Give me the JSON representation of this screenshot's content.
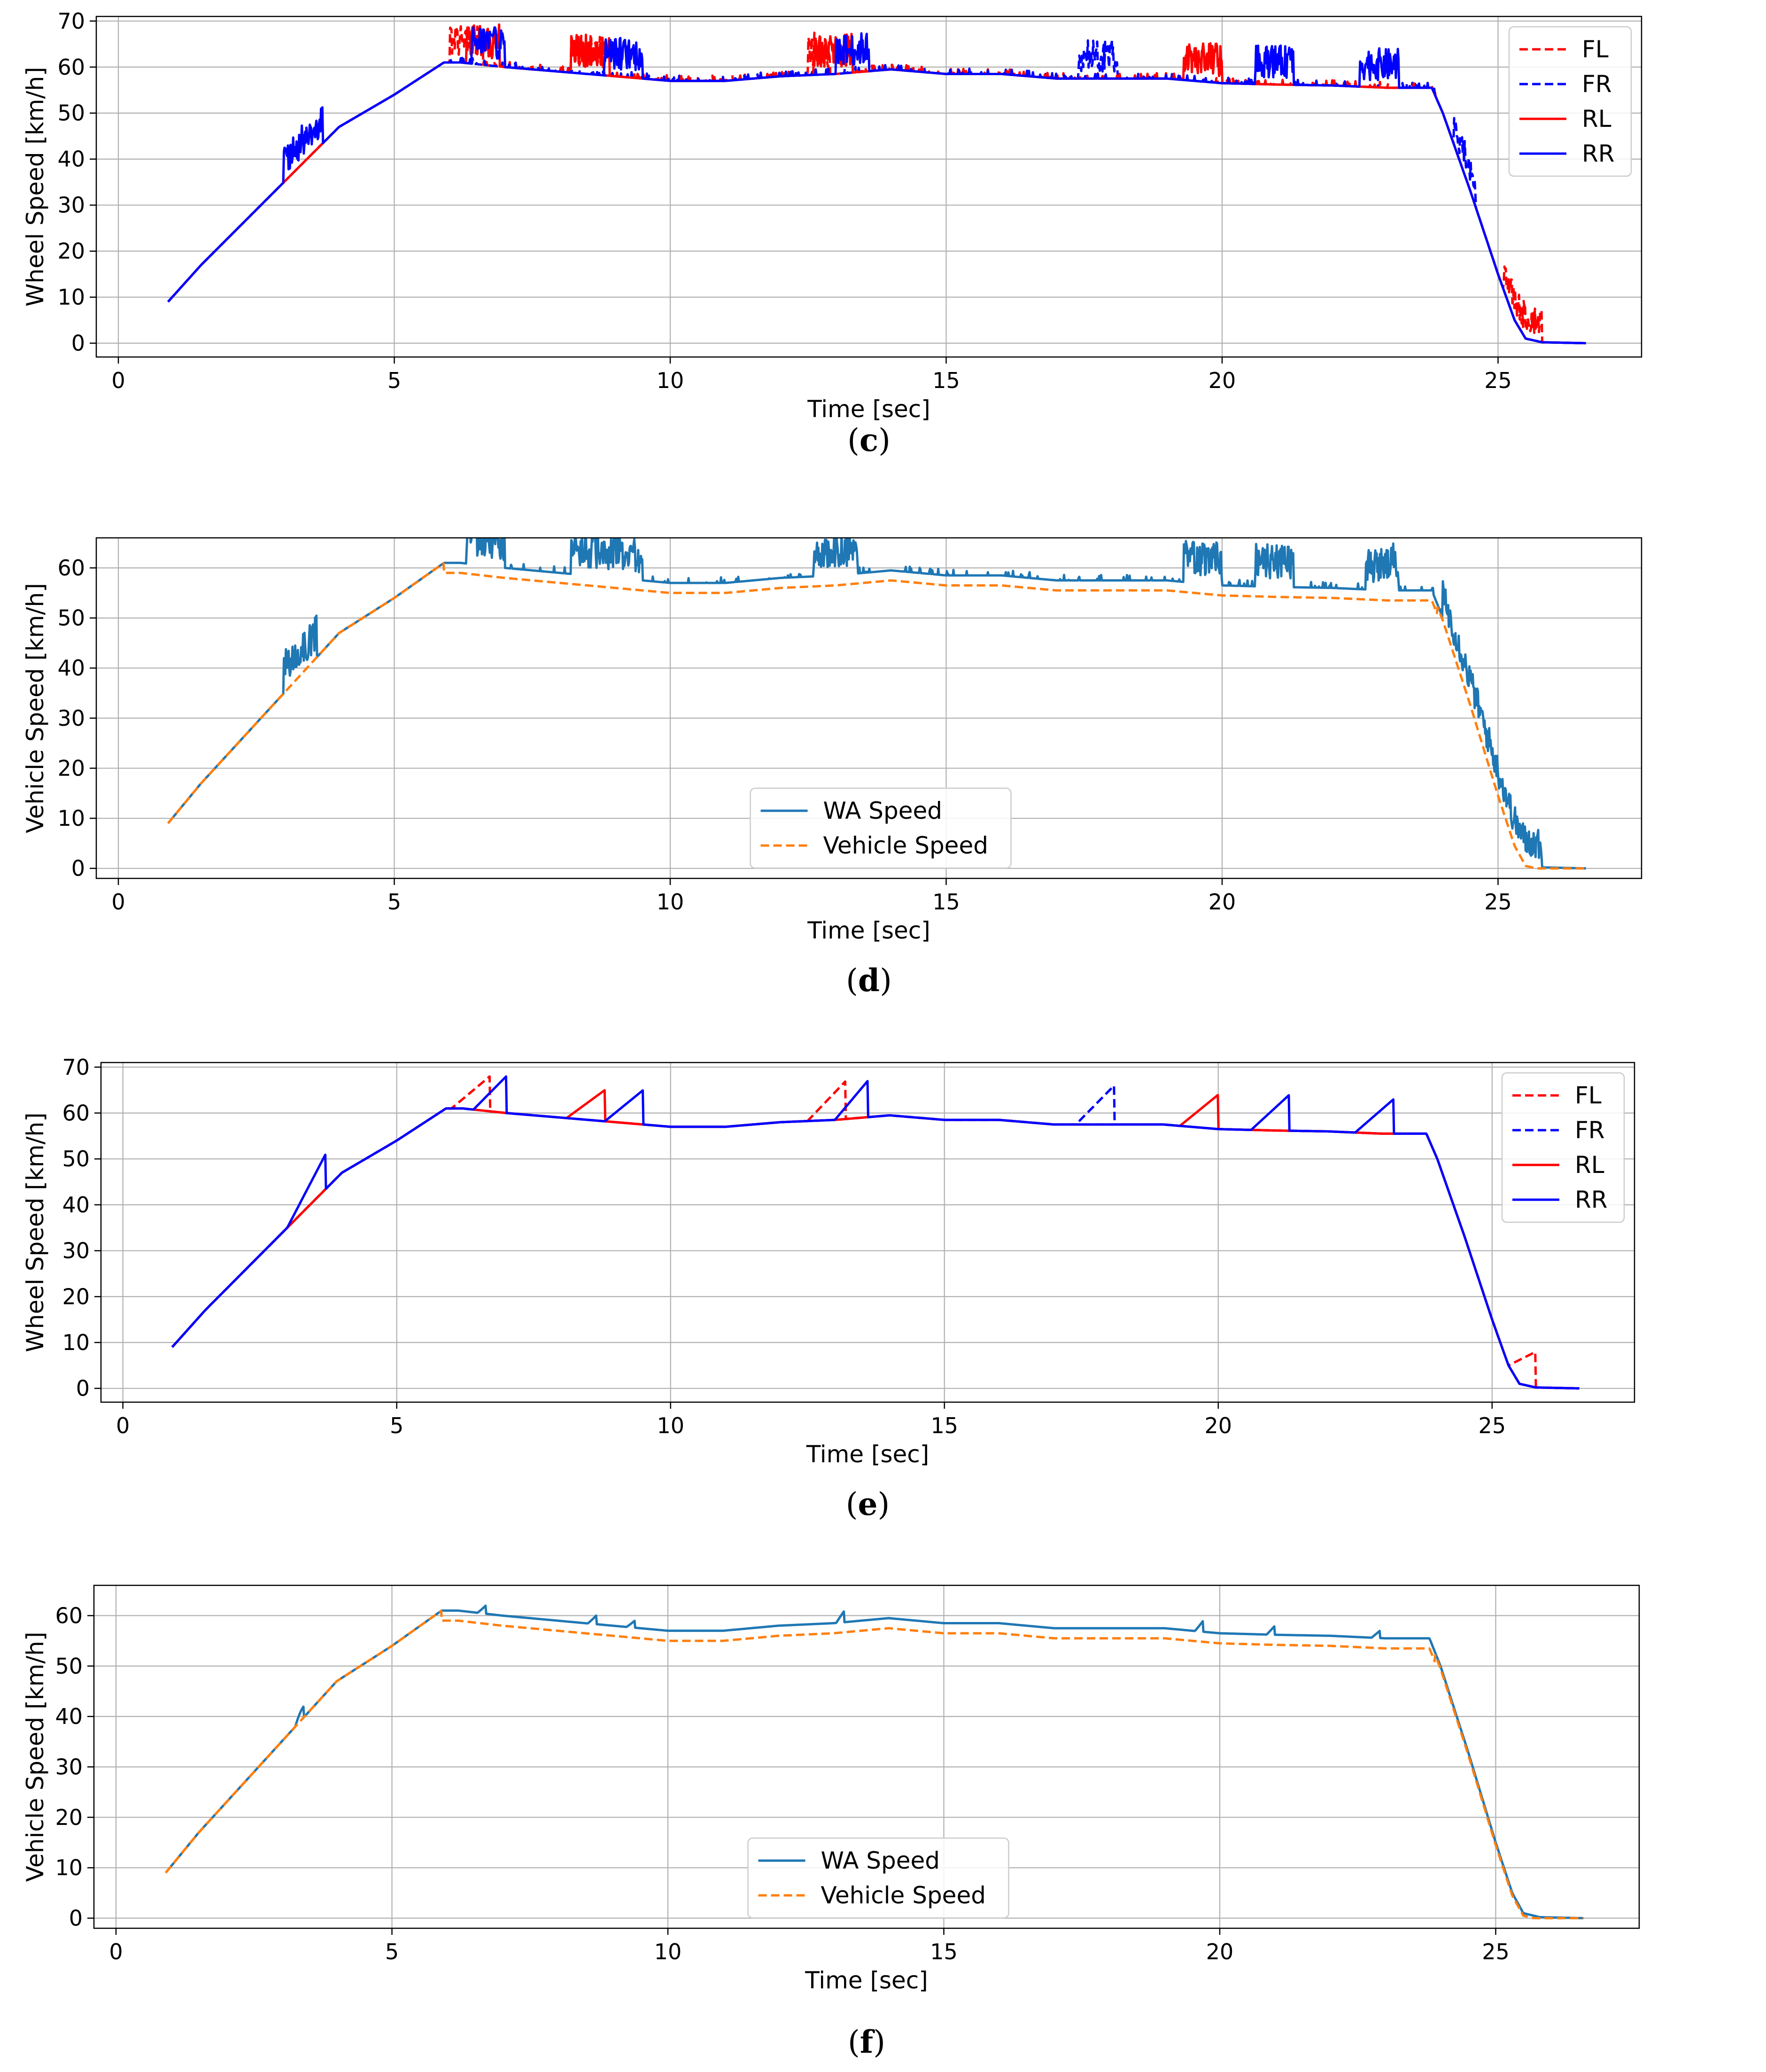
{
  "figure": {
    "captions": [
      "c",
      "d",
      "e",
      "f"
    ]
  },
  "chart_data": [
    {
      "panel": "c",
      "type": "line",
      "xlabel": "Time [sec]",
      "ylabel": "Wheel Speed [km/h]",
      "xlim": [
        -0.4,
        27.6
      ],
      "ylim": [
        -3,
        71
      ],
      "xticks": [
        0,
        5,
        10,
        15,
        20,
        25
      ],
      "yticks": [
        0,
        10,
        20,
        30,
        40,
        50,
        60,
        70
      ],
      "grid": true,
      "legend_position": "top-right",
      "series": [
        {
          "name": "FL",
          "color": "#ff0000",
          "dash": true,
          "noise": [
            [
              6.0,
              6.6
            ],
            [
              8.2,
              8.8
            ],
            [
              12.5,
              12.9
            ],
            [
              25.1,
              25.8
            ]
          ]
        },
        {
          "name": "FR",
          "color": "#0000ff",
          "dash": true,
          "noise": [
            [
              17.4,
              18.1
            ],
            [
              24.2,
              24.6
            ]
          ]
        },
        {
          "name": "RL",
          "color": "#ff0000",
          "dash": false,
          "noise": [
            [
              6.3,
              6.9
            ],
            [
              8.2,
              8.9
            ],
            [
              12.6,
              13.3
            ],
            [
              19.3,
              20.0
            ]
          ]
        },
        {
          "name": "RR",
          "color": "#0000ff",
          "dash": false,
          "noise": [
            [
              3.0,
              3.7
            ],
            [
              6.4,
              7.0
            ],
            [
              8.8,
              9.5
            ],
            [
              13.0,
              13.6
            ],
            [
              20.6,
              21.3
            ],
            [
              22.5,
              23.2
            ]
          ]
        }
      ]
    },
    {
      "panel": "d",
      "type": "line",
      "xlabel": "Time [sec]",
      "ylabel": "Vehicle Speed [km/h]",
      "xlim": [
        -0.4,
        27.6
      ],
      "ylim": [
        -2,
        66
      ],
      "xticks": [
        0,
        5,
        10,
        15,
        20,
        25
      ],
      "yticks": [
        0,
        10,
        20,
        30,
        40,
        50,
        60
      ],
      "grid": true,
      "legend_position": "lower-center",
      "series": [
        {
          "name": "WA Speed",
          "color": "#1f77b4",
          "dash": false,
          "noise": [
            [
              3.0,
              3.6
            ],
            [
              6.3,
              7.0
            ],
            [
              8.2,
              9.5
            ],
            [
              12.6,
              13.4
            ],
            [
              19.3,
              20.0
            ],
            [
              20.6,
              21.3
            ],
            [
              22.6,
              23.2
            ],
            [
              24.0,
              25.8
            ]
          ]
        },
        {
          "name": "Vehicle Speed",
          "color": "#ff7f0e",
          "dash": true,
          "noise": []
        }
      ]
    },
    {
      "panel": "e",
      "type": "line",
      "xlabel": "Time [sec]",
      "ylabel": "Wheel Speed [km/h]",
      "xlim": [
        -0.4,
        27.6
      ],
      "ylim": [
        -3,
        71
      ],
      "xticks": [
        0,
        5,
        10,
        15,
        20,
        25
      ],
      "yticks": [
        0,
        10,
        20,
        30,
        40,
        50,
        60,
        70
      ],
      "grid": true,
      "legend_position": "top-right",
      "series": [
        {
          "name": "FL",
          "color": "#ff0000",
          "dash": true,
          "ramps": [
            [
              6.0,
              6.7,
              68
            ],
            [
              12.5,
              13.2,
              67
            ],
            [
              25.3,
              25.8,
              8
            ]
          ]
        },
        {
          "name": "FR",
          "color": "#0000ff",
          "dash": true,
          "ramps": [
            [
              17.4,
              18.1,
              66
            ]
          ]
        },
        {
          "name": "RL",
          "color": "#ff0000",
          "dash": false,
          "ramps": [
            [
              8.1,
              8.8,
              65
            ],
            [
              19.3,
              20.0,
              64
            ]
          ]
        },
        {
          "name": "RR",
          "color": "#0000ff",
          "dash": false,
          "ramps": [
            [
              3.0,
              3.7,
              51
            ],
            [
              6.4,
              7.0,
              68
            ],
            [
              8.8,
              9.5,
              65
            ],
            [
              13.0,
              13.6,
              67
            ],
            [
              20.6,
              21.3,
              64
            ],
            [
              22.5,
              23.2,
              63
            ]
          ]
        }
      ]
    },
    {
      "panel": "f",
      "type": "line",
      "xlabel": "Time [sec]",
      "ylabel": "Vehicle Speed [km/h]",
      "xlim": [
        -0.4,
        27.6
      ],
      "ylim": [
        -2,
        66
      ],
      "xticks": [
        0,
        5,
        10,
        15,
        20,
        25
      ],
      "yticks": [
        0,
        10,
        20,
        30,
        40,
        50,
        60
      ],
      "grid": true,
      "legend_position": "lower-center",
      "series": [
        {
          "name": "WA Speed",
          "color": "#1f77b4",
          "dash": false,
          "bumps": [
            [
              3.4,
              42
            ],
            [
              6.7,
              62
            ],
            [
              8.7,
              60
            ],
            [
              9.4,
              59
            ],
            [
              13.2,
              61
            ],
            [
              19.7,
              59
            ],
            [
              21.0,
              58
            ],
            [
              22.9,
              57
            ]
          ]
        },
        {
          "name": "Vehicle Speed",
          "color": "#ff7f0e",
          "dash": true,
          "bumps": []
        }
      ]
    }
  ],
  "profile": {
    "base_curve": [
      [
        0.9,
        9
      ],
      [
        1.5,
        17
      ],
      [
        2.0,
        23
      ],
      [
        3.0,
        35
      ],
      [
        4.0,
        47
      ],
      [
        5.0,
        54
      ],
      [
        5.9,
        61
      ],
      [
        6.2,
        61
      ],
      [
        7.0,
        60
      ],
      [
        8.0,
        59
      ],
      [
        9.0,
        58
      ],
      [
        10.0,
        57
      ],
      [
        11.0,
        57
      ],
      [
        12.0,
        58
      ],
      [
        13.0,
        58.5
      ],
      [
        14.0,
        59.5
      ],
      [
        15.0,
        58.5
      ],
      [
        16.0,
        58.5
      ],
      [
        17.0,
        57.5
      ],
      [
        18.0,
        57.5
      ],
      [
        19.0,
        57.5
      ],
      [
        20.0,
        56.5
      ],
      [
        21.0,
        56.2
      ],
      [
        22.0,
        56
      ],
      [
        23.0,
        55.5
      ],
      [
        23.8,
        55.5
      ],
      [
        24.0,
        50
      ],
      [
        24.5,
        33
      ],
      [
        25.0,
        15
      ],
      [
        25.3,
        5
      ],
      [
        25.5,
        1
      ],
      [
        25.8,
        0.2
      ],
      [
        26.6,
        0
      ]
    ],
    "vehicle_offset": -2
  }
}
